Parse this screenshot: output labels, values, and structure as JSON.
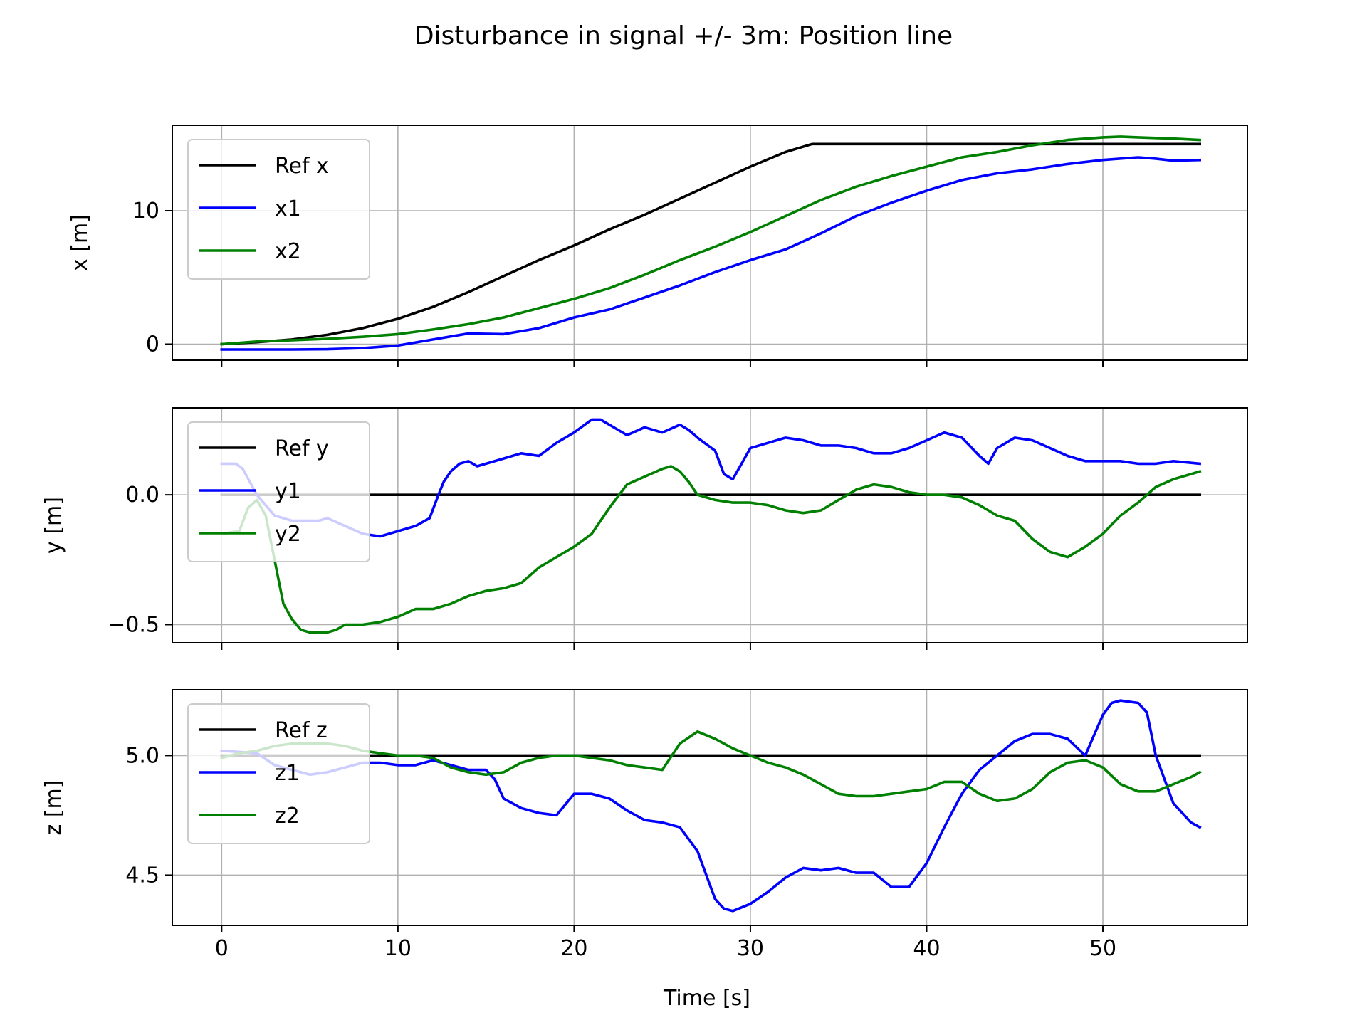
{
  "title": "Disturbance in signal +/- 3m: Position line",
  "xlabel": "Time [s]",
  "colors": {
    "ref": "#000000",
    "s1": "#0000ff",
    "s2": "#008000",
    "grid": "#b0b0b0",
    "axes": "#000000"
  },
  "chart_data": [
    {
      "type": "line",
      "ylabel": "x [m]",
      "xlim": [
        -2.8,
        58.2
      ],
      "ylim": [
        -1.2,
        16.4
      ],
      "xticks": [
        0,
        10,
        20,
        30,
        40,
        50
      ],
      "yticks": [
        0,
        10
      ],
      "ytick_labels": [
        "0",
        "10"
      ],
      "grid": true,
      "legend": "upper left",
      "series": [
        {
          "name": "Ref x",
          "color": "#000000",
          "x": [
            0,
            2,
            4,
            6,
            8,
            10,
            12,
            14,
            16,
            18,
            20,
            22,
            24,
            26,
            28,
            30,
            32,
            33.5,
            36,
            40,
            45,
            50,
            55.5
          ],
          "y": [
            0,
            0.15,
            0.35,
            0.7,
            1.2,
            1.9,
            2.8,
            3.9,
            5.1,
            6.3,
            7.4,
            8.6,
            9.7,
            10.9,
            12.1,
            13.3,
            14.4,
            15.0,
            15.0,
            15.0,
            15.0,
            15.0,
            15.0
          ]
        },
        {
          "name": "x1",
          "color": "#0000ff",
          "x": [
            0,
            2,
            4,
            6,
            8,
            10,
            12,
            14,
            16,
            18,
            20,
            22,
            24,
            26,
            28,
            30,
            32,
            34,
            36,
            38,
            40,
            42,
            44,
            46,
            48,
            50,
            52,
            53,
            54,
            55.5
          ],
          "y": [
            -0.4,
            -0.4,
            -0.4,
            -0.38,
            -0.3,
            -0.1,
            0.35,
            0.8,
            0.75,
            1.2,
            2.0,
            2.6,
            3.5,
            4.4,
            5.4,
            6.3,
            7.1,
            8.3,
            9.6,
            10.6,
            11.5,
            12.3,
            12.8,
            13.1,
            13.5,
            13.8,
            14.0,
            13.9,
            13.75,
            13.8
          ]
        },
        {
          "name": "x2",
          "color": "#008000",
          "x": [
            0,
            2,
            4,
            6,
            8,
            10,
            12,
            14,
            16,
            18,
            20,
            22,
            24,
            26,
            28,
            30,
            32,
            34,
            36,
            38,
            40,
            42,
            44,
            46,
            48,
            50,
            51,
            52,
            54,
            55.5
          ],
          "y": [
            0,
            0.2,
            0.3,
            0.4,
            0.55,
            0.75,
            1.1,
            1.5,
            2.0,
            2.7,
            3.4,
            4.2,
            5.2,
            6.3,
            7.3,
            8.4,
            9.6,
            10.8,
            11.8,
            12.6,
            13.3,
            14.0,
            14.4,
            14.9,
            15.3,
            15.5,
            15.55,
            15.5,
            15.4,
            15.3
          ]
        }
      ]
    },
    {
      "type": "line",
      "ylabel": "y [m]",
      "xlim": [
        -2.8,
        58.2
      ],
      "ylim": [
        -0.57,
        0.335
      ],
      "xticks": [
        0,
        10,
        20,
        30,
        40,
        50
      ],
      "yticks": [
        -0.5,
        0.0
      ],
      "ytick_labels": [
        "−0.5",
        "0.0"
      ],
      "grid": true,
      "legend": "upper left",
      "series": [
        {
          "name": "Ref y",
          "color": "#000000",
          "x": [
            0,
            55.5
          ],
          "y": [
            0,
            0
          ]
        },
        {
          "name": "y1",
          "color": "#0000ff",
          "x": [
            0,
            0.8,
            1.2,
            2,
            3,
            4,
            5.5,
            6,
            7,
            8,
            9,
            10,
            11,
            11.8,
            12.3,
            12.6,
            13,
            13.5,
            14,
            14.5,
            15,
            16,
            17,
            18,
            19,
            20,
            21,
            21.5,
            22,
            22.5,
            23,
            24,
            25,
            26,
            26.5,
            27,
            28,
            28.5,
            29,
            29.5,
            30,
            31,
            32,
            33,
            34,
            35,
            36,
            37,
            38,
            39,
            40,
            41,
            42,
            43,
            43.5,
            44,
            45,
            46,
            47,
            48,
            49,
            50,
            51,
            52,
            53,
            54,
            55.5
          ],
          "y": [
            0.12,
            0.12,
            0.1,
            0.0,
            -0.08,
            -0.1,
            -0.1,
            -0.09,
            -0.12,
            -0.15,
            -0.16,
            -0.14,
            -0.12,
            -0.09,
            0.0,
            0.05,
            0.09,
            0.12,
            0.13,
            0.11,
            0.12,
            0.14,
            0.16,
            0.15,
            0.2,
            0.24,
            0.29,
            0.29,
            0.27,
            0.25,
            0.23,
            0.26,
            0.24,
            0.27,
            0.25,
            0.22,
            0.17,
            0.08,
            0.06,
            0.12,
            0.18,
            0.2,
            0.22,
            0.21,
            0.19,
            0.19,
            0.18,
            0.16,
            0.16,
            0.18,
            0.21,
            0.24,
            0.22,
            0.15,
            0.12,
            0.18,
            0.22,
            0.21,
            0.18,
            0.15,
            0.13,
            0.13,
            0.13,
            0.12,
            0.12,
            0.13,
            0.12
          ]
        },
        {
          "name": "y2",
          "color": "#008000",
          "x": [
            0,
            1,
            1.5,
            2,
            2.5,
            3,
            3.5,
            4,
            4.5,
            5,
            5.5,
            6,
            6.5,
            7,
            8,
            9,
            10,
            11,
            12,
            13,
            14,
            15,
            16,
            17,
            18,
            19,
            20,
            21,
            21.5,
            22,
            23,
            24,
            25,
            25.5,
            26,
            26.5,
            27,
            28,
            29,
            30,
            31,
            32,
            33,
            34,
            35,
            36,
            37,
            38,
            39,
            40,
            41,
            42,
            43,
            44,
            45,
            46,
            47,
            48,
            49,
            50,
            51,
            52,
            53,
            54,
            55,
            55.5
          ],
          "y": [
            -0.15,
            -0.14,
            -0.05,
            -0.02,
            -0.08,
            -0.25,
            -0.42,
            -0.48,
            -0.52,
            -0.53,
            -0.53,
            -0.53,
            -0.52,
            -0.5,
            -0.5,
            -0.49,
            -0.47,
            -0.44,
            -0.44,
            -0.42,
            -0.39,
            -0.37,
            -0.36,
            -0.34,
            -0.28,
            -0.24,
            -0.2,
            -0.15,
            -0.1,
            -0.05,
            0.04,
            0.07,
            0.1,
            0.11,
            0.09,
            0.05,
            0.0,
            -0.02,
            -0.03,
            -0.03,
            -0.04,
            -0.06,
            -0.07,
            -0.06,
            -0.02,
            0.02,
            0.04,
            0.03,
            0.01,
            0.0,
            0.0,
            -0.01,
            -0.04,
            -0.08,
            -0.1,
            -0.17,
            -0.22,
            -0.24,
            -0.2,
            -0.15,
            -0.08,
            -0.03,
            0.03,
            0.06,
            0.08,
            0.09
          ]
        }
      ]
    },
    {
      "type": "line",
      "ylabel": "z [m]",
      "xlim": [
        -2.8,
        58.2
      ],
      "ylim": [
        4.29,
        5.275
      ],
      "xticks": [
        0,
        10,
        20,
        30,
        40,
        50
      ],
      "yticks": [
        4.5,
        5.0
      ],
      "ytick_labels": [
        "4.5",
        "5.0"
      ],
      "grid": true,
      "legend": "upper left",
      "series": [
        {
          "name": "Ref z",
          "color": "#000000",
          "x": [
            0,
            55.5
          ],
          "y": [
            5.0,
            5.0
          ]
        },
        {
          "name": "z1",
          "color": "#0000ff",
          "x": [
            0,
            2,
            3,
            4,
            5,
            6,
            7,
            8,
            9,
            10,
            11,
            12,
            13,
            14,
            15,
            15.5,
            16,
            17,
            18,
            19,
            20,
            21,
            22,
            23,
            24,
            25,
            26,
            27,
            27.5,
            28,
            28.5,
            29,
            30,
            31,
            32,
            33,
            34,
            35,
            36,
            37,
            38,
            39,
            40,
            41,
            42,
            43,
            44,
            45,
            46,
            47,
            48,
            49,
            50,
            50.5,
            51,
            52,
            52.5,
            53,
            54,
            55,
            55.5
          ],
          "y": [
            5.02,
            5.01,
            4.96,
            4.94,
            4.92,
            4.93,
            4.95,
            4.97,
            4.97,
            4.96,
            4.96,
            4.98,
            4.96,
            4.94,
            4.94,
            4.9,
            4.82,
            4.78,
            4.76,
            4.75,
            4.84,
            4.84,
            4.82,
            4.77,
            4.73,
            4.72,
            4.7,
            4.6,
            4.5,
            4.4,
            4.36,
            4.35,
            4.38,
            4.43,
            4.49,
            4.53,
            4.52,
            4.53,
            4.51,
            4.51,
            4.45,
            4.45,
            4.55,
            4.7,
            4.84,
            4.94,
            5.0,
            5.06,
            5.09,
            5.09,
            5.07,
            5.0,
            5.17,
            5.22,
            5.23,
            5.22,
            5.18,
            5.0,
            4.8,
            4.72,
            4.7
          ]
        },
        {
          "name": "z2",
          "color": "#008000",
          "x": [
            0,
            1,
            2,
            3,
            4,
            5,
            6,
            7,
            8,
            9,
            10,
            11,
            12,
            13,
            14,
            15,
            16,
            17,
            18,
            19,
            20,
            21,
            22,
            23,
            24,
            25,
            26,
            27,
            28,
            29,
            30,
            31,
            32,
            33,
            34,
            35,
            36,
            37,
            38,
            39,
            40,
            41,
            42,
            43,
            44,
            45,
            46,
            47,
            48,
            49,
            50,
            51,
            52,
            53,
            54,
            55,
            55.5
          ],
          "y": [
            4.99,
            5.01,
            5.02,
            5.04,
            5.05,
            5.05,
            5.05,
            5.04,
            5.02,
            5.01,
            5.0,
            5.0,
            4.99,
            4.95,
            4.93,
            4.92,
            4.93,
            4.97,
            4.99,
            5.0,
            5.0,
            4.99,
            4.98,
            4.96,
            4.95,
            4.94,
            5.05,
            5.1,
            5.07,
            5.03,
            5.0,
            4.97,
            4.95,
            4.92,
            4.88,
            4.84,
            4.83,
            4.83,
            4.84,
            4.85,
            4.86,
            4.89,
            4.89,
            4.84,
            4.81,
            4.82,
            4.86,
            4.93,
            4.97,
            4.98,
            4.95,
            4.88,
            4.85,
            4.85,
            4.88,
            4.91,
            4.93
          ]
        }
      ]
    }
  ]
}
